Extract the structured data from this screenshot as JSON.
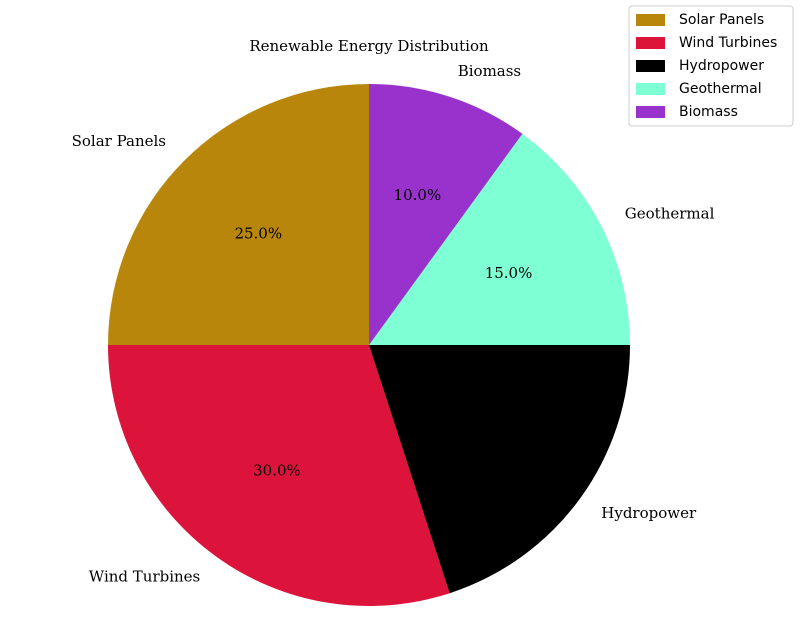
{
  "chart_data": {
    "type": "pie",
    "title": "Renewable Energy Distribution",
    "categories": [
      "Solar Panels",
      "Wind Turbines",
      "Hydropower",
      "Geothermal",
      "Biomass"
    ],
    "values": [
      25.0,
      30.0,
      20.0,
      15.0,
      10.0
    ],
    "colors": [
      "#b8860b",
      "#dc143c",
      "#000000",
      "#7fffd4",
      "#9932cc"
    ],
    "pct_labels": [
      "25.0%",
      "30.0%",
      "",
      "15.0%",
      "10.0%"
    ],
    "legend": {
      "position": "top-right",
      "entries": [
        "Solar Panels",
        "Wind Turbines",
        "Hydropower",
        "Geothermal",
        "Biomass"
      ]
    }
  }
}
